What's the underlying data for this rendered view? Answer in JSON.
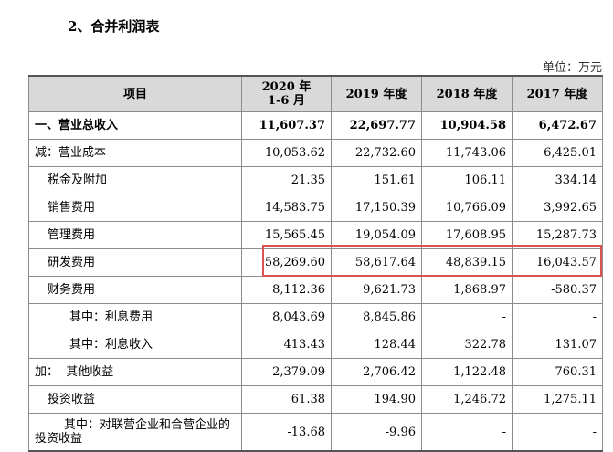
{
  "section_title": "2、合并利润表",
  "unit": "单位：万元",
  "headers": [
    "项目",
    "2020 年\n1-6 月",
    "2019 年度",
    "2018 年度",
    "2017 年度"
  ],
  "rows": [
    {
      "label": "一、营业总收入",
      "values": [
        "11,607.37",
        "22,697.77",
        "10,904.58",
        "6,472.67"
      ]
    },
    {
      "label": "减：营业成本",
      "values": [
        "10,053.62",
        "22,732.60",
        "11,743.06",
        "6,425.01"
      ]
    },
    {
      "label": "税金及附加",
      "values": [
        "21.35",
        "151.61",
        "106.11",
        "334.14"
      ]
    },
    {
      "label": "销售费用",
      "values": [
        "14,583.75",
        "17,150.39",
        "10,766.09",
        "3,992.65"
      ]
    },
    {
      "label": "管理费用",
      "values": [
        "15,565.45",
        "19,054.09",
        "17,608.95",
        "15,287.73"
      ]
    },
    {
      "label": "研发费用",
      "values": [
        "58,269.60",
        "58,617.64",
        "48,839.15",
        "16,043.57"
      ]
    },
    {
      "label": "财务费用",
      "values": [
        "8,112.36",
        "9,621.73",
        "1,868.97",
        "-580.37"
      ]
    },
    {
      "label": "其中：利息费用",
      "values": [
        "8,043.69",
        "8,845.86",
        "-",
        "-"
      ]
    },
    {
      "label": "其中：利息收入",
      "values": [
        "413.43",
        "128.44",
        "322.78",
        "131.07"
      ]
    },
    {
      "label": "加：  其他收益",
      "values": [
        "2,379.09",
        "2,706.42",
        "1,122.48",
        "760.31"
      ]
    },
    {
      "label": "投资收益",
      "values": [
        "61.38",
        "194.90",
        "1,246.72",
        "1,275.11"
      ]
    },
    {
      "label": "其中：对联营企业和合营企业的投资收益",
      "values": [
        "-13.68",
        "-9.96",
        "-",
        "-"
      ]
    }
  ]
}
